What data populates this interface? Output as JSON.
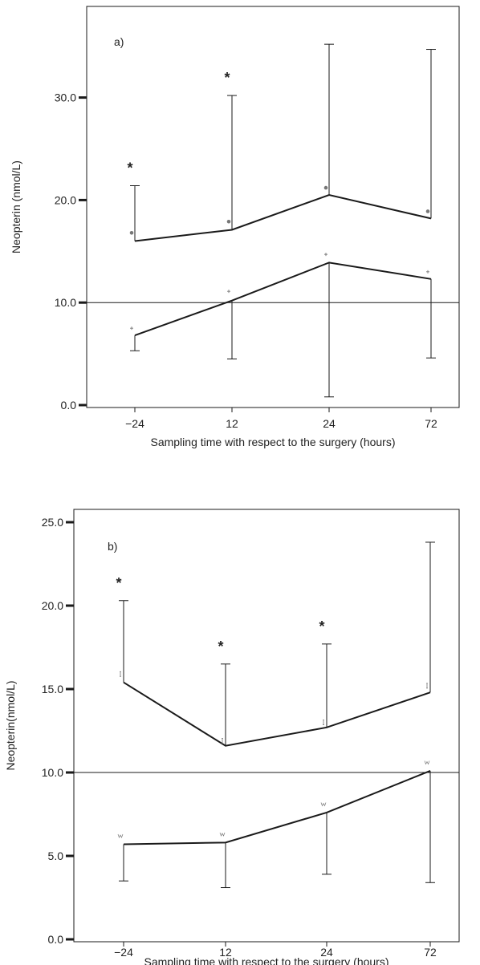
{
  "colors": {
    "line": "#1a1a1a",
    "marker": "#777777",
    "text": "#222222"
  },
  "chart_data": [
    {
      "type": "line",
      "panel_label": "a)",
      "xlabel": "Sampling time with respect to the surgery (hours)",
      "ylabel": "Neopterin (nmol/L)",
      "categories": [
        "−24",
        "12",
        "24",
        "72"
      ],
      "ylim": [
        0,
        36
      ],
      "yticks": [
        0,
        10,
        20,
        30
      ],
      "ytick_labels": [
        "0.0",
        "10.0",
        "20.0",
        "30.0"
      ],
      "reference_line": 10,
      "grid": false,
      "series": [
        {
          "values": [
            16.0,
            17.1,
            20.5,
            18.2
          ],
          "error_end": [
            21.4,
            30.2,
            35.2,
            34.7
          ],
          "marker_values": [
            16.8,
            17.9,
            21.2,
            18.9
          ],
          "marker": "dot",
          "significance": [
            true,
            true,
            false,
            false
          ]
        },
        {
          "values": [
            6.8,
            10.2,
            13.9,
            12.3
          ],
          "error_end": [
            5.3,
            4.5,
            0.8,
            4.6
          ],
          "marker_values": [
            7.5,
            11.1,
            14.7,
            13.0
          ],
          "marker": "plus"
        }
      ],
      "significance_marker": "*"
    },
    {
      "type": "line",
      "panel_label": "b)",
      "xlabel": "Sampling time with respect to the surgery (hours)",
      "ylabel": "Neopterin(nmol/L)",
      "categories": [
        "−24",
        "12",
        "24",
        "72"
      ],
      "ylim": [
        0,
        25
      ],
      "yticks": [
        0,
        5,
        10,
        15,
        20,
        25
      ],
      "ytick_labels": [
        "0.0",
        "5.0",
        "10.0",
        "15.0",
        "20.0",
        "25.0"
      ],
      "reference_line": 10,
      "grid": false,
      "series": [
        {
          "values": [
            15.4,
            11.6,
            12.7,
            14.8
          ],
          "error_end": [
            20.3,
            16.5,
            17.7,
            23.8
          ],
          "marker_values": [
            15.9,
            11.9,
            13.0,
            15.2
          ],
          "marker": "I",
          "significance": [
            true,
            true,
            true,
            false
          ]
        },
        {
          "values": [
            5.7,
            5.8,
            7.6,
            10.1
          ],
          "error_end": [
            3.5,
            3.1,
            3.9,
            3.4
          ],
          "marker_values": [
            6.2,
            6.3,
            8.1,
            10.6
          ],
          "marker": "W"
        }
      ],
      "significance_marker": "*"
    }
  ]
}
